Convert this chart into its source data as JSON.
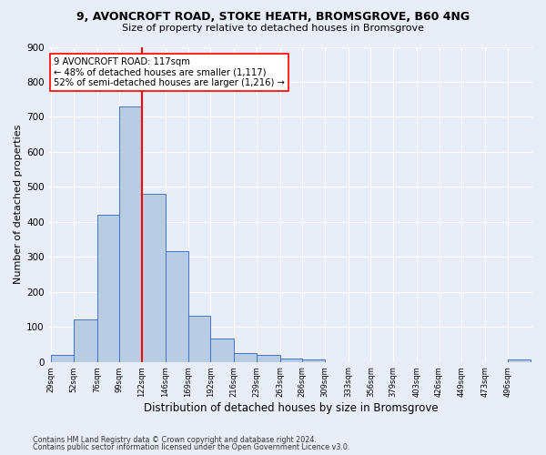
{
  "title_line1": "9, AVONCROFT ROAD, STOKE HEATH, BROMSGROVE, B60 4NG",
  "title_line2": "Size of property relative to detached houses in Bromsgrove",
  "xlabel": "Distribution of detached houses by size in Bromsgrove",
  "ylabel": "Number of detached properties",
  "bins": [
    29,
    52,
    76,
    99,
    122,
    146,
    169,
    192,
    216,
    239,
    263,
    286,
    309,
    333,
    356,
    379,
    403,
    426,
    449,
    473,
    496
  ],
  "counts": [
    20,
    122,
    420,
    730,
    480,
    315,
    132,
    67,
    25,
    20,
    10,
    8,
    0,
    0,
    0,
    0,
    0,
    0,
    0,
    0,
    8
  ],
  "bar_color": "#b8cce4",
  "bar_edgecolor": "#4472c4",
  "vline_x": 122,
  "vline_color": "red",
  "annotation_text": "9 AVONCROFT ROAD: 117sqm\n← 48% of detached houses are smaller (1,117)\n52% of semi-detached houses are larger (1,216) →",
  "annotation_box_color": "white",
  "annotation_box_edgecolor": "red",
  "ylim": [
    0,
    900
  ],
  "yticks": [
    0,
    100,
    200,
    300,
    400,
    500,
    600,
    700,
    800,
    900
  ],
  "tick_labels": [
    "29sqm",
    "52sqm",
    "76sqm",
    "99sqm",
    "122sqm",
    "146sqm",
    "169sqm",
    "192sqm",
    "216sqm",
    "239sqm",
    "263sqm",
    "286sqm",
    "309sqm",
    "333sqm",
    "356sqm",
    "379sqm",
    "403sqm",
    "426sqm",
    "449sqm",
    "473sqm",
    "496sqm"
  ],
  "footer_line1": "Contains HM Land Registry data © Crown copyright and database right 2024.",
  "footer_line2": "Contains public sector information licensed under the Open Government Licence v3.0.",
  "bg_color": "#e8eef8",
  "grid_color": "#ffffff",
  "plot_bg_color": "#dce6f5"
}
